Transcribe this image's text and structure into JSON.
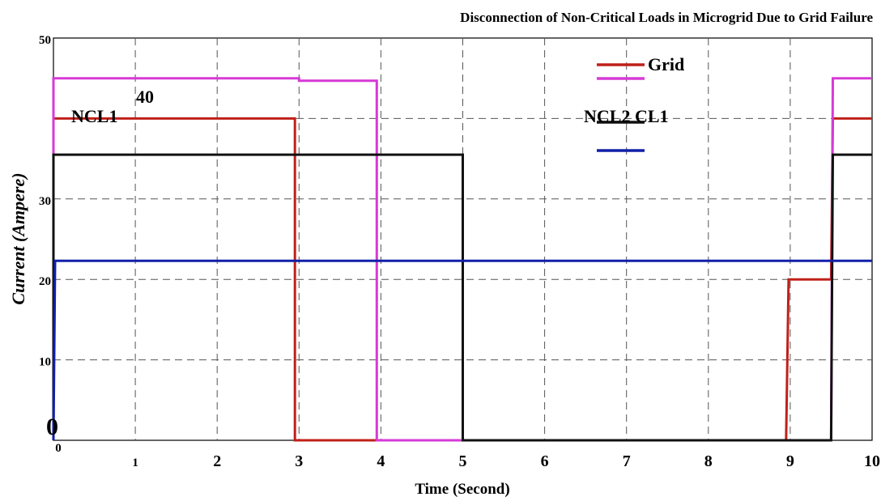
{
  "chart_data": {
    "type": "line",
    "title": "Disconnection of Non-Critical Loads in Microgrid Due to Grid Failure",
    "xlabel": "Time (Second)",
    "ylabel": "Current (Ampere)",
    "xlim": [
      0,
      10
    ],
    "ylim": [
      0,
      50
    ],
    "grid": true,
    "x_ticks": [
      {
        "value": 0,
        "label": "0"
      },
      {
        "value": 1,
        "label": "1"
      },
      {
        "value": 2,
        "label": "2"
      },
      {
        "value": 3,
        "label": "3"
      },
      {
        "value": 4,
        "label": "4"
      },
      {
        "value": 5,
        "label": "5"
      },
      {
        "value": 6,
        "label": "6"
      },
      {
        "value": 7,
        "label": "7"
      },
      {
        "value": 8,
        "label": "8"
      },
      {
        "value": 9,
        "label": "9"
      },
      {
        "value": 10,
        "label": "10"
      }
    ],
    "y_ticks": [
      {
        "value": 0,
        "label": "0"
      },
      {
        "value": 10,
        "label": "10"
      },
      {
        "value": 20,
        "label": "20"
      },
      {
        "value": 30,
        "label": "30"
      },
      {
        "value": 40,
        "label": "40"
      },
      {
        "value": 50,
        "label": "50"
      }
    ],
    "legend_position": "top-right",
    "legend": [
      {
        "label": "Grid",
        "color": "#c0201a"
      },
      {
        "label": "",
        "color": "#d63ad6"
      },
      {
        "label": "NCL2 CL1",
        "color": "#111111"
      },
      {
        "label": "",
        "color": "#1020a8"
      }
    ],
    "annotations": [
      {
        "text": "NCL1",
        "x": 0.2,
        "y": 40
      }
    ],
    "series": [
      {
        "color": "#c0201a",
        "x": [
          0,
          0,
          2.95,
          2.95,
          8.95,
          8.98,
          9.5,
          9.52,
          10
        ],
        "y": [
          0,
          40,
          40,
          0,
          0,
          20,
          20,
          40,
          40
        ]
      },
      {
        "color": "#d63ad6",
        "x": [
          0,
          0,
          3.0,
          3.0,
          3.95,
          3.95,
          9.5,
          9.52,
          10
        ],
        "y": [
          0,
          45,
          45,
          44.7,
          44.7,
          0,
          0,
          45,
          45
        ]
      },
      {
        "color": "#111111",
        "x": [
          0,
          0,
          5.0,
          5.0,
          9.5,
          9.52,
          10
        ],
        "y": [
          0,
          35.5,
          35.5,
          0,
          0,
          35.5,
          35.5
        ]
      },
      {
        "color": "#1020a8",
        "x": [
          0,
          0.02,
          10
        ],
        "y": [
          0,
          22.3,
          22.3
        ]
      }
    ]
  }
}
